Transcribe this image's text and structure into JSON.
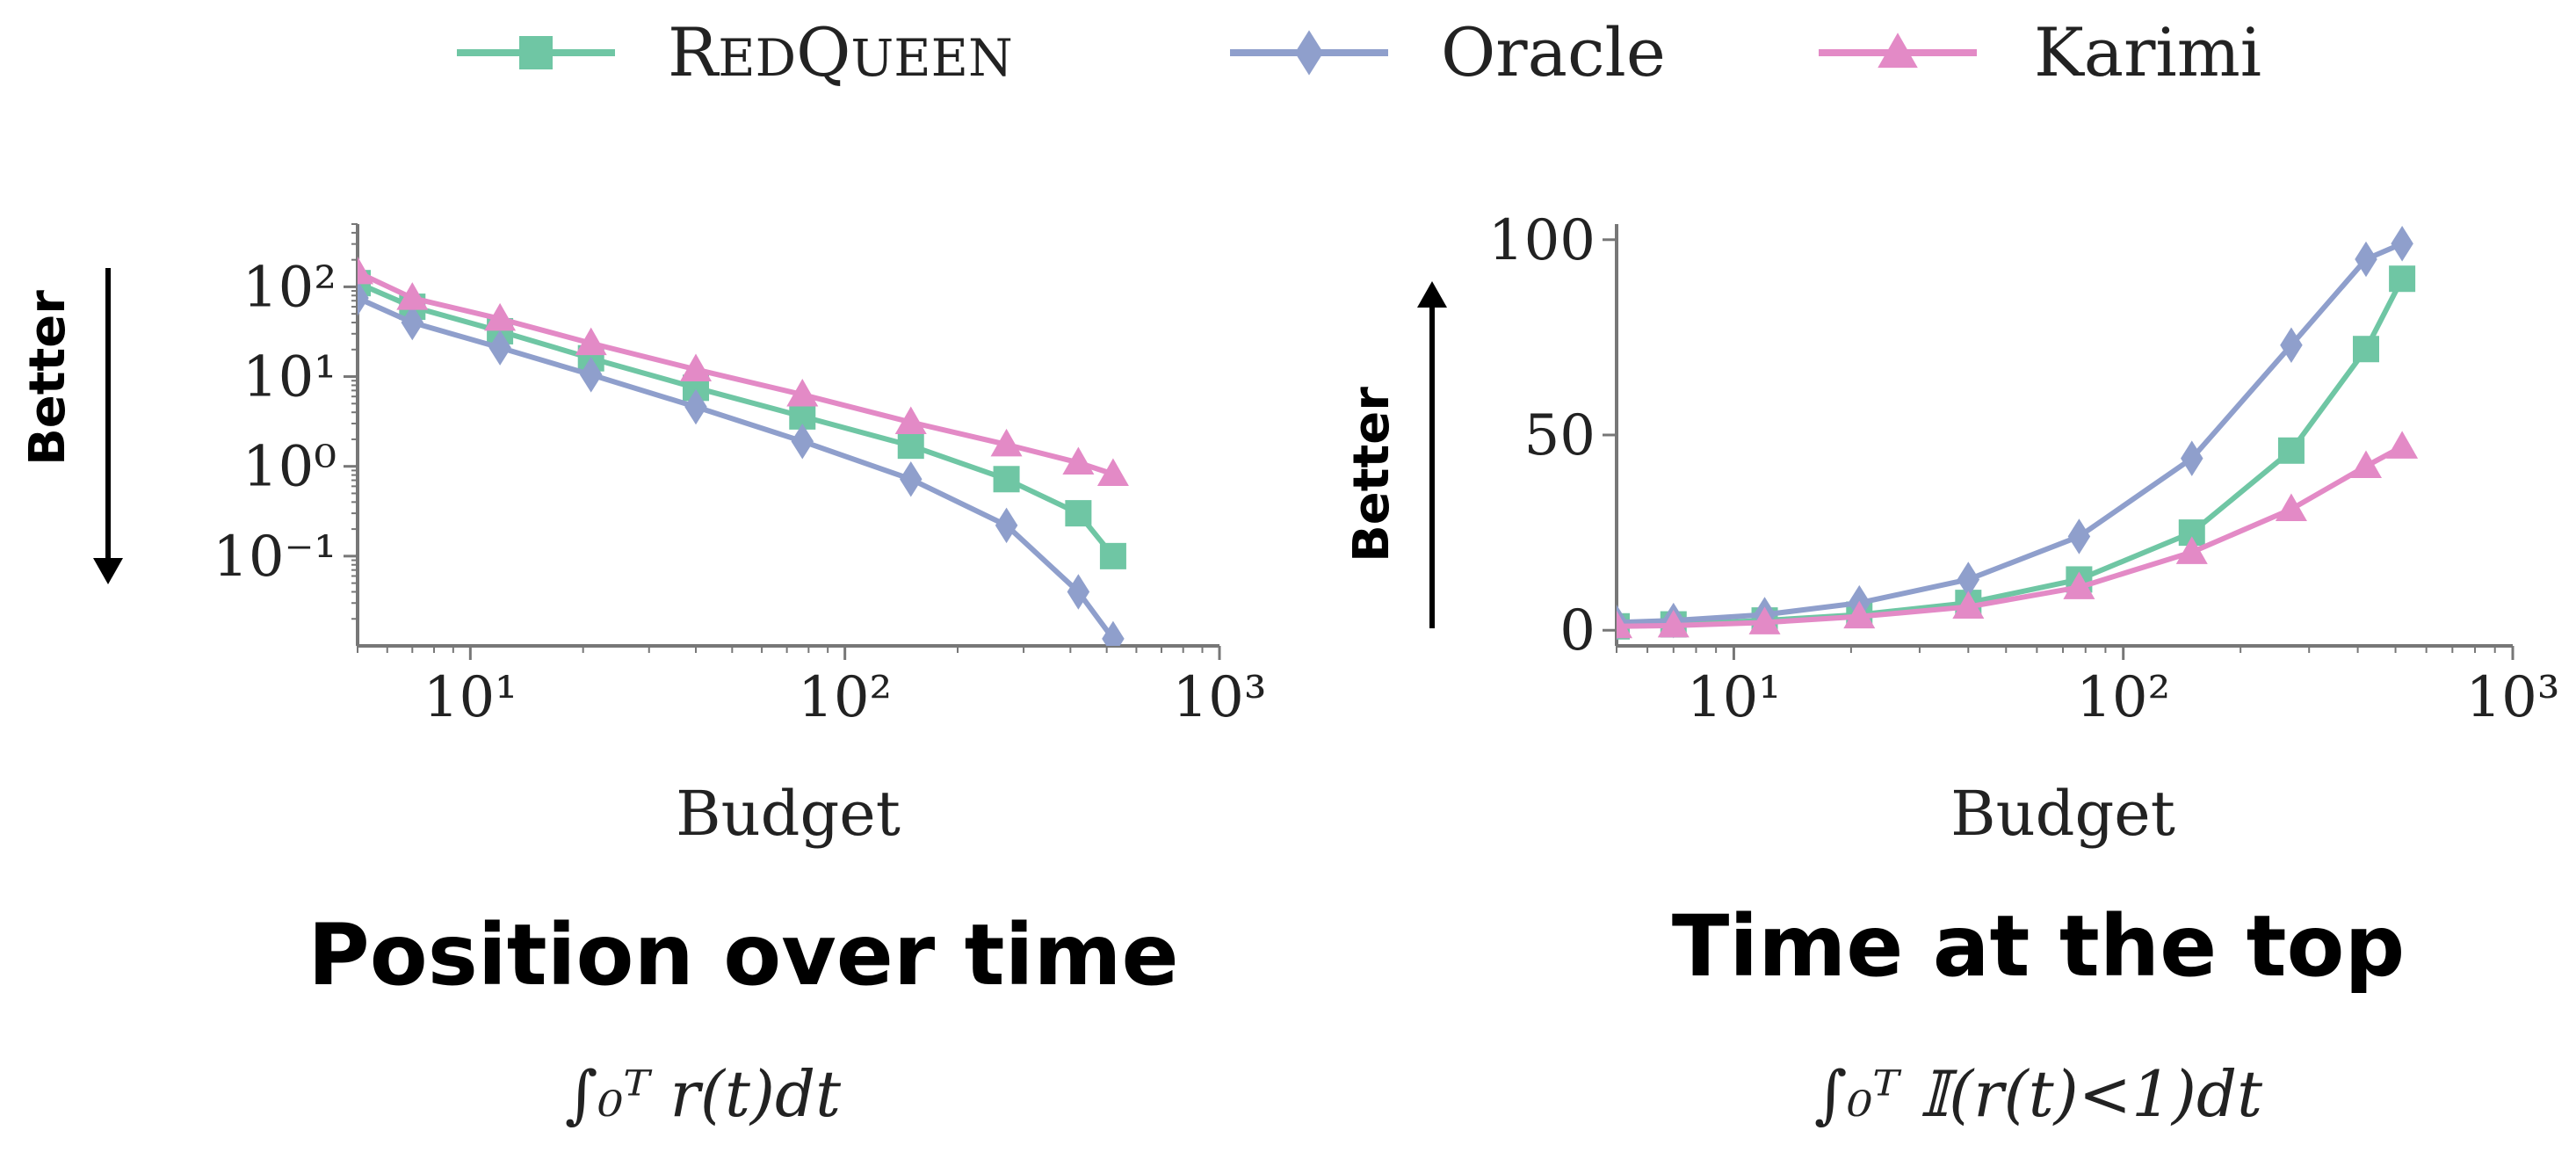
{
  "colors": {
    "redqueen": "#6fc6a4",
    "oracle": "#8f9fcc",
    "karimi": "#e38ac6",
    "axis": "#777777"
  },
  "legend": [
    {
      "label": "RedQueen",
      "marker": "square",
      "color": "#6fc6a4"
    },
    {
      "label": "Oracle",
      "marker": "diamond",
      "color": "#8f9fcc"
    },
    {
      "label": "Karimi",
      "marker": "triangle",
      "color": "#e38ac6"
    }
  ],
  "better_label": "Better",
  "chart_data": [
    {
      "type": "line",
      "title": "Position over time",
      "formula": "∫₀ᵀ r(t)dt",
      "xlabel": "Budget",
      "ylabel": "",
      "x_scale": "log",
      "y_scale": "log",
      "xlim": [
        5,
        1000
      ],
      "ylim": [
        0.01,
        500
      ],
      "xticks": [
        {
          "value": 10,
          "label": "10¹"
        },
        {
          "value": 100,
          "label": "10²"
        },
        {
          "value": 1000,
          "label": "10³"
        }
      ],
      "yticks": [
        {
          "value": 100,
          "label": "10²"
        },
        {
          "value": 10,
          "label": "10¹"
        },
        {
          "value": 1,
          "label": "10⁰"
        },
        {
          "value": 0.1,
          "label": "10⁻¹"
        }
      ],
      "better_direction": "down",
      "x": [
        5,
        7,
        12,
        21,
        40,
        77,
        150,
        270,
        420,
        520
      ],
      "series": [
        {
          "name": "RedQueen",
          "values": [
            110,
            60,
            32,
            16,
            7.5,
            3.6,
            1.7,
            0.72,
            0.3,
            0.1
          ]
        },
        {
          "name": "Oracle",
          "values": [
            75,
            40,
            21,
            10.5,
            4.6,
            1.9,
            0.72,
            0.22,
            0.04,
            0.012
          ]
        },
        {
          "name": "Karimi",
          "values": [
            145,
            75,
            44,
            23.5,
            12,
            6.3,
            3.1,
            1.75,
            1.1,
            0.82
          ]
        }
      ]
    },
    {
      "type": "line",
      "title": "Time at the top",
      "formula": "∫₀ᵀ 𝕀(r(t)<1)dt",
      "xlabel": "Budget",
      "ylabel": "",
      "x_scale": "log",
      "y_scale": "linear",
      "xlim": [
        5,
        1000
      ],
      "ylim": [
        -4,
        104
      ],
      "xticks": [
        {
          "value": 10,
          "label": "10¹"
        },
        {
          "value": 100,
          "label": "10²"
        },
        {
          "value": 1000,
          "label": "10³"
        }
      ],
      "yticks": [
        {
          "value": 0,
          "label": "0"
        },
        {
          "value": 50,
          "label": "50"
        },
        {
          "value": 100,
          "label": "100"
        }
      ],
      "better_direction": "up",
      "x": [
        5,
        7,
        12,
        21,
        40,
        77,
        150,
        270,
        420,
        520
      ],
      "series": [
        {
          "name": "RedQueen",
          "values": [
            1,
            1.5,
            2.5,
            4,
            7,
            13,
            25,
            46,
            72,
            90
          ]
        },
        {
          "name": "Oracle",
          "values": [
            2,
            2.5,
            4,
            7,
            13,
            24,
            44,
            73,
            95,
            99
          ]
        },
        {
          "name": "Karimi",
          "values": [
            1,
            1.2,
            2,
            3.5,
            6,
            11,
            20,
            31,
            42,
            47
          ]
        }
      ]
    }
  ]
}
